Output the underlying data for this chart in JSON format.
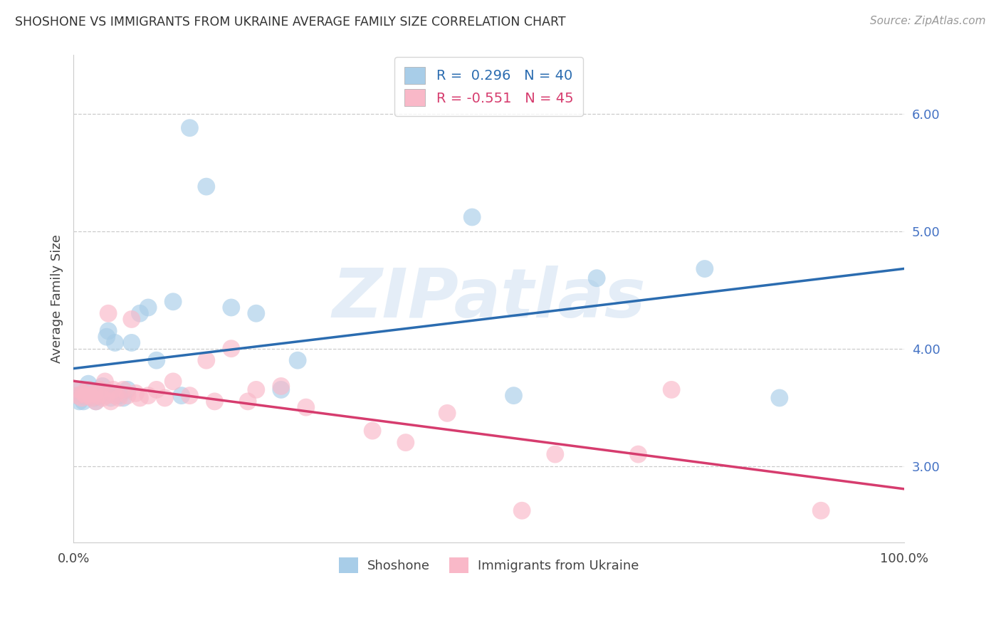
{
  "title": "SHOSHONE VS IMMIGRANTS FROM UKRAINE AVERAGE FAMILY SIZE CORRELATION CHART",
  "source": "Source: ZipAtlas.com",
  "ylabel": "Average Family Size",
  "shoshone_R": 0.296,
  "shoshone_N": 40,
  "ukraine_R": -0.551,
  "ukraine_N": 45,
  "shoshone_color": "#a8cde8",
  "ukraine_color": "#f9b8c8",
  "shoshone_line_color": "#2b6cb0",
  "ukraine_line_color": "#d63c6e",
  "background_color": "#ffffff",
  "grid_color": "#cccccc",
  "watermark": "ZIPatlas",
  "ytick_values": [
    3.0,
    4.0,
    5.0,
    6.0
  ],
  "ylim": [
    2.35,
    6.5
  ],
  "xlim": [
    0.0,
    1.0
  ],
  "shoshone_x": [
    0.005,
    0.007,
    0.008,
    0.01,
    0.012,
    0.015,
    0.018,
    0.02,
    0.022,
    0.025,
    0.027,
    0.03,
    0.033,
    0.035,
    0.038,
    0.04,
    0.042,
    0.045,
    0.048,
    0.05,
    0.055,
    0.06,
    0.065,
    0.07,
    0.08,
    0.09,
    0.1,
    0.12,
    0.14,
    0.16,
    0.19,
    0.22,
    0.25,
    0.13,
    0.27,
    0.48,
    0.53,
    0.63,
    0.76,
    0.85
  ],
  "shoshone_y": [
    3.6,
    3.55,
    3.65,
    3.6,
    3.55,
    3.6,
    3.7,
    3.65,
    3.6,
    3.58,
    3.55,
    3.62,
    3.6,
    3.68,
    3.63,
    4.1,
    4.15,
    3.58,
    3.62,
    4.05,
    3.6,
    3.58,
    3.65,
    4.05,
    4.3,
    4.35,
    3.9,
    4.4,
    5.88,
    5.38,
    4.35,
    4.3,
    3.65,
    3.6,
    3.9,
    5.12,
    3.6,
    4.6,
    4.68,
    3.58
  ],
  "ukraine_x": [
    0.005,
    0.007,
    0.01,
    0.012,
    0.015,
    0.018,
    0.02,
    0.022,
    0.025,
    0.027,
    0.03,
    0.032,
    0.035,
    0.038,
    0.04,
    0.042,
    0.045,
    0.048,
    0.05,
    0.055,
    0.06,
    0.065,
    0.07,
    0.075,
    0.08,
    0.09,
    0.1,
    0.11,
    0.12,
    0.14,
    0.16,
    0.19,
    0.22,
    0.25,
    0.17,
    0.21,
    0.28,
    0.36,
    0.4,
    0.45,
    0.54,
    0.58,
    0.68,
    0.72,
    0.9
  ],
  "ukraine_y": [
    3.6,
    3.65,
    3.58,
    3.62,
    3.6,
    3.65,
    3.6,
    3.58,
    3.62,
    3.55,
    3.6,
    3.65,
    3.58,
    3.72,
    3.6,
    4.3,
    3.55,
    3.65,
    3.6,
    3.58,
    3.65,
    3.6,
    4.25,
    3.62,
    3.58,
    3.6,
    3.65,
    3.58,
    3.72,
    3.6,
    3.9,
    4.0,
    3.65,
    3.68,
    3.55,
    3.55,
    3.5,
    3.3,
    3.2,
    3.45,
    2.62,
    3.1,
    3.1,
    3.65,
    2.62
  ]
}
